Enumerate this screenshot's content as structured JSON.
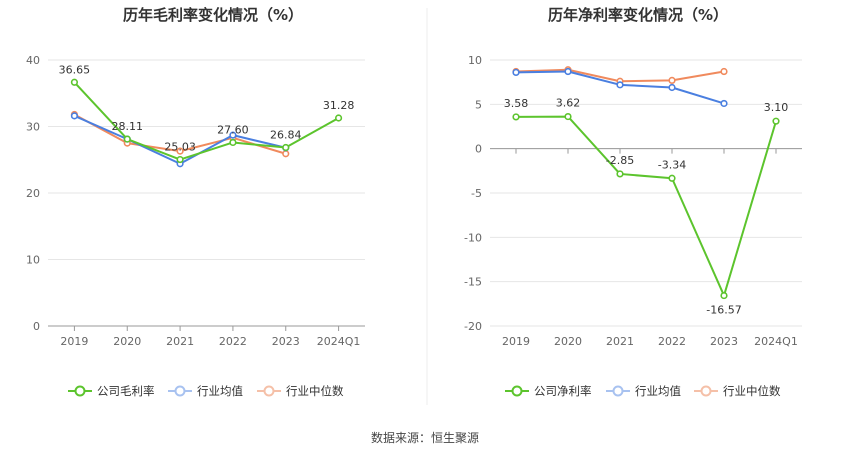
{
  "charts": [
    {
      "title": "历年毛利率变化情况（%）",
      "legend": {
        "company": "公司毛利率",
        "industry_avg": "行业均值",
        "industry_median": "行业中位数"
      }
    },
    {
      "title": "历年净利率变化情况（%）",
      "legend": {
        "company": "公司净利率",
        "industry_avg": "行业均值",
        "industry_median": "行业中位数"
      }
    }
  ],
  "source_text": "数据来源：恒生聚源",
  "colors": {
    "company": "#5cc42d",
    "industry_avg": "#4a7fe0",
    "industry_median": "#f08a5d",
    "grid": "#e6e6e6",
    "axis": "#999999"
  },
  "chart_data": [
    {
      "type": "line",
      "title": "历年毛利率变化情况（%）",
      "categories": [
        "2019",
        "2020",
        "2021",
        "2022",
        "2023",
        "2024Q1"
      ],
      "ylim": [
        0,
        40
      ],
      "yticks": [
        0,
        10,
        20,
        30,
        40
      ],
      "grid": true,
      "legend_position": "bottom",
      "series": [
        {
          "name": "公司毛利率",
          "key": "company",
          "values": [
            36.65,
            28.11,
            25.03,
            27.6,
            26.84,
            31.28
          ],
          "labels": [
            "36.65",
            "28.11",
            "25.03",
            "27.60",
            "26.84",
            "31.28"
          ]
        },
        {
          "name": "行业均值",
          "key": "industry_avg",
          "values": [
            31.6,
            28.1,
            24.4,
            28.7,
            26.8,
            null
          ]
        },
        {
          "name": "行业中位数",
          "key": "industry_median",
          "values": [
            31.8,
            27.5,
            26.3,
            28.3,
            25.9,
            null
          ]
        }
      ]
    },
    {
      "type": "line",
      "title": "历年净利率变化情况（%）",
      "categories": [
        "2019",
        "2020",
        "2021",
        "2022",
        "2023",
        "2024Q1"
      ],
      "ylim": [
        -20,
        10
      ],
      "yticks": [
        -20,
        -15,
        -10,
        -5,
        0,
        5,
        10
      ],
      "grid": true,
      "legend_position": "bottom",
      "series": [
        {
          "name": "公司净利率",
          "key": "company",
          "values": [
            3.58,
            3.62,
            -2.85,
            -3.34,
            -16.57,
            3.1
          ],
          "labels": [
            "3.58",
            "3.62",
            "-2.85",
            "-3.34",
            "-16.57",
            "3.10"
          ]
        },
        {
          "name": "行业均值",
          "key": "industry_avg",
          "values": [
            8.6,
            8.7,
            7.2,
            6.9,
            5.1,
            null
          ]
        },
        {
          "name": "行业中位数",
          "key": "industry_median",
          "values": [
            8.7,
            8.9,
            7.6,
            7.7,
            8.7,
            null
          ]
        }
      ]
    }
  ]
}
